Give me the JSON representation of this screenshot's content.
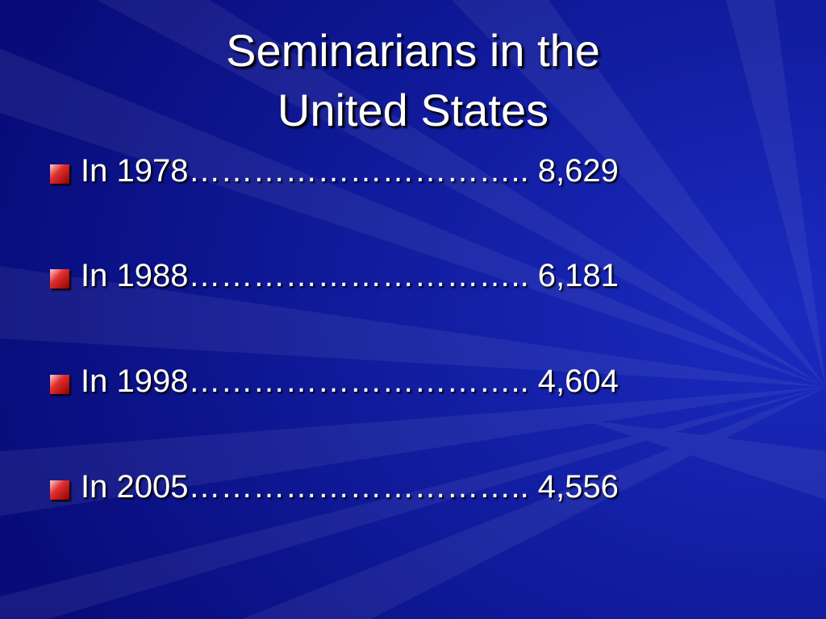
{
  "title": {
    "lines": [
      "Seminarians in the",
      "United States"
    ]
  },
  "bullets": [
    "In 1978………………………….. 8,629",
    "In 1988………………………….. 6,181",
    "In 1998………………………….. 4,604",
    "In 2005………………………….. 4,556"
  ]
}
